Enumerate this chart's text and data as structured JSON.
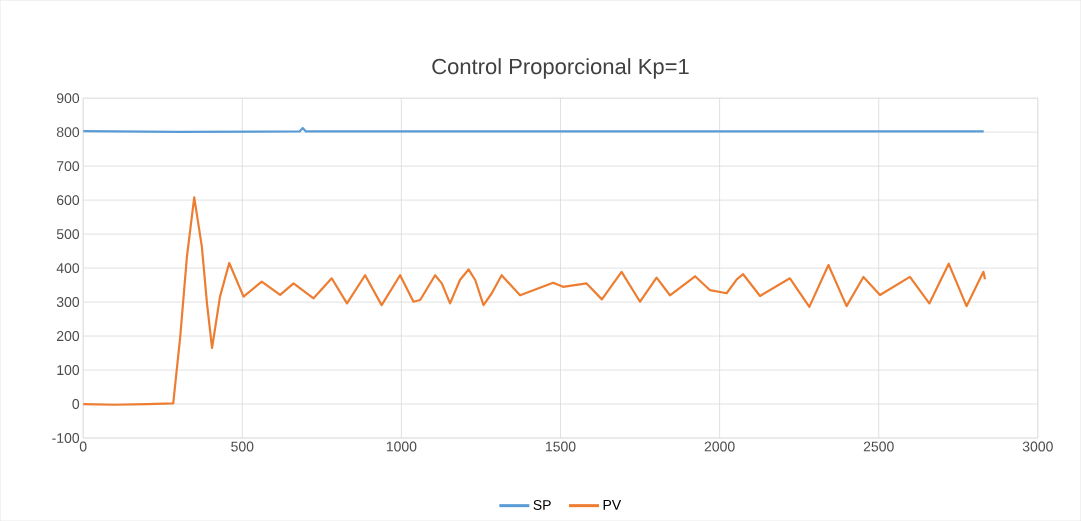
{
  "chart_data": {
    "type": "line",
    "title": "Control Proporcional Kp=1",
    "xlim": [
      0,
      3000
    ],
    "xticks": [
      0,
      500,
      1000,
      1500,
      2000,
      2500,
      3000
    ],
    "ylim": [
      -100,
      900
    ],
    "yticks": [
      -100,
      0,
      100,
      200,
      300,
      400,
      500,
      600,
      700,
      800,
      900
    ],
    "grid": true,
    "legend": "bottom",
    "marker": "none",
    "line_style": "solid",
    "series": [
      {
        "name": "SP",
        "color": "#5b9bd5",
        "x": [
          0,
          300,
          680,
          690,
          700,
          1500,
          2830
        ],
        "values": [
          803,
          801,
          802,
          812,
          802,
          802,
          802
        ]
      },
      {
        "name": "PV",
        "color": "#ed7d31",
        "x": [
          0,
          100,
          200,
          283,
          305,
          326,
          349,
          373,
          389,
          405,
          430,
          459,
          504,
          561,
          619,
          661,
          724,
          781,
          829,
          886,
          938,
          996,
          1038,
          1059,
          1106,
          1127,
          1153,
          1184,
          1211,
          1232,
          1258,
          1284,
          1315,
          1373,
          1477,
          1508,
          1582,
          1630,
          1692,
          1750,
          1802,
          1844,
          1923,
          1970,
          2022,
          2054,
          2074,
          2127,
          2221,
          2282,
          2342,
          2399,
          2452,
          2504,
          2598,
          2659,
          2720,
          2776,
          2829,
          2834
        ],
        "values": [
          0,
          -2,
          0,
          2,
          198,
          433,
          608,
          463,
          297,
          165,
          316,
          415,
          316,
          360,
          321,
          355,
          311,
          370,
          296,
          379,
          291,
          379,
          301,
          306,
          379,
          355,
          296,
          365,
          396,
          365,
          291,
          326,
          379,
          320,
          357,
          345,
          355,
          308,
          389,
          301,
          372,
          320,
          376,
          335,
          326,
          367,
          382,
          318,
          370,
          286,
          409,
          288,
          374,
          321,
          374,
          296,
          413,
          288,
          389,
          367
        ]
      }
    ]
  }
}
